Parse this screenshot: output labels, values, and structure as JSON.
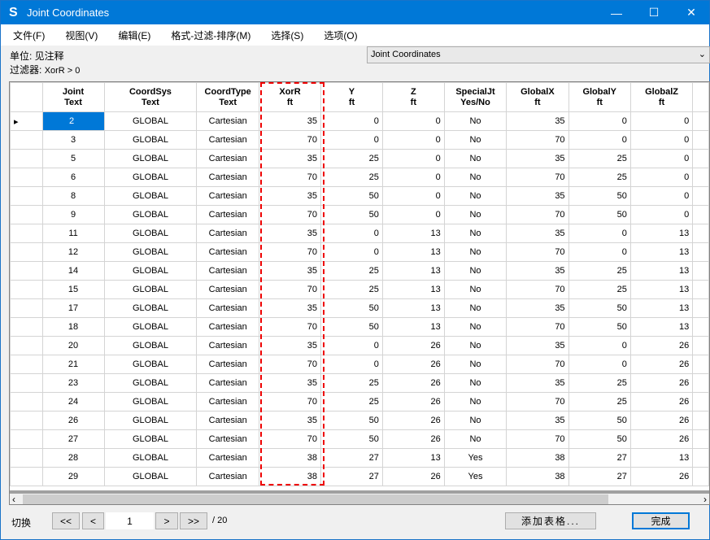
{
  "window": {
    "title": "Joint Coordinates",
    "logo": "S",
    "minimize": "—",
    "maximize": "☐",
    "close": "✕"
  },
  "menu": [
    "文件(F)",
    "视图(V)",
    "编辑(E)",
    "格式-过滤-排序(M)",
    "选择(S)",
    "选项(O)"
  ],
  "units": "单位: 见注释",
  "filter_label": "过滤器:",
  "filter_value": "XorR > 0",
  "table_select": "Joint Coordinates",
  "columns": [
    [
      "Joint",
      "Text"
    ],
    [
      "CoordSys",
      "Text"
    ],
    [
      "CoordType",
      "Text"
    ],
    [
      "XorR",
      "ft"
    ],
    [
      "Y",
      "ft"
    ],
    [
      "Z",
      "ft"
    ],
    [
      "SpecialJt",
      "Yes/No"
    ],
    [
      "GlobalX",
      "ft"
    ],
    [
      "GlobalY",
      "ft"
    ],
    [
      "GlobalZ",
      "ft"
    ]
  ],
  "rows": [
    [
      "2",
      "GLOBAL",
      "Cartesian",
      "35",
      "0",
      "0",
      "No",
      "35",
      "0",
      "0"
    ],
    [
      "3",
      "GLOBAL",
      "Cartesian",
      "70",
      "0",
      "0",
      "No",
      "70",
      "0",
      "0"
    ],
    [
      "5",
      "GLOBAL",
      "Cartesian",
      "35",
      "25",
      "0",
      "No",
      "35",
      "25",
      "0"
    ],
    [
      "6",
      "GLOBAL",
      "Cartesian",
      "70",
      "25",
      "0",
      "No",
      "70",
      "25",
      "0"
    ],
    [
      "8",
      "GLOBAL",
      "Cartesian",
      "35",
      "50",
      "0",
      "No",
      "35",
      "50",
      "0"
    ],
    [
      "9",
      "GLOBAL",
      "Cartesian",
      "70",
      "50",
      "0",
      "No",
      "70",
      "50",
      "0"
    ],
    [
      "11",
      "GLOBAL",
      "Cartesian",
      "35",
      "0",
      "13",
      "No",
      "35",
      "0",
      "13"
    ],
    [
      "12",
      "GLOBAL",
      "Cartesian",
      "70",
      "0",
      "13",
      "No",
      "70",
      "0",
      "13"
    ],
    [
      "14",
      "GLOBAL",
      "Cartesian",
      "35",
      "25",
      "13",
      "No",
      "35",
      "25",
      "13"
    ],
    [
      "15",
      "GLOBAL",
      "Cartesian",
      "70",
      "25",
      "13",
      "No",
      "70",
      "25",
      "13"
    ],
    [
      "17",
      "GLOBAL",
      "Cartesian",
      "35",
      "50",
      "13",
      "No",
      "35",
      "50",
      "13"
    ],
    [
      "18",
      "GLOBAL",
      "Cartesian",
      "70",
      "50",
      "13",
      "No",
      "70",
      "50",
      "13"
    ],
    [
      "20",
      "GLOBAL",
      "Cartesian",
      "35",
      "0",
      "26",
      "No",
      "35",
      "0",
      "26"
    ],
    [
      "21",
      "GLOBAL",
      "Cartesian",
      "70",
      "0",
      "26",
      "No",
      "70",
      "0",
      "26"
    ],
    [
      "23",
      "GLOBAL",
      "Cartesian",
      "35",
      "25",
      "26",
      "No",
      "35",
      "25",
      "26"
    ],
    [
      "24",
      "GLOBAL",
      "Cartesian",
      "70",
      "25",
      "26",
      "No",
      "70",
      "25",
      "26"
    ],
    [
      "26",
      "GLOBAL",
      "Cartesian",
      "35",
      "50",
      "26",
      "No",
      "35",
      "50",
      "26"
    ],
    [
      "27",
      "GLOBAL",
      "Cartesian",
      "70",
      "50",
      "26",
      "No",
      "70",
      "50",
      "26"
    ],
    [
      "28",
      "GLOBAL",
      "Cartesian",
      "38",
      "27",
      "13",
      "Yes",
      "38",
      "27",
      "13"
    ],
    [
      "29",
      "GLOBAL",
      "Cartesian",
      "38",
      "27",
      "26",
      "Yes",
      "38",
      "27",
      "26"
    ]
  ],
  "footer": {
    "switch_label": "切换",
    "first": "<<",
    "prev": "<",
    "page": "1",
    "next": ">",
    "last": ">>",
    "total": "/ 20",
    "add_table": "添加表格...",
    "done": "完成"
  },
  "colors": {
    "accent": "#0078d7",
    "highlight": "#e00000"
  }
}
